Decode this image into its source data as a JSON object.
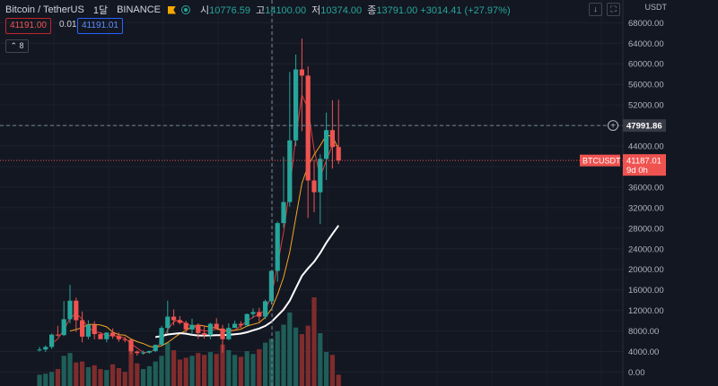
{
  "header": {
    "symbol": "Bitcoin / TetherUS",
    "interval": "1달",
    "exchange": "BINANCE",
    "ohlc": [
      {
        "key": "시",
        "value": "10776.59"
      },
      {
        "key": "고",
        "value": "14100.00"
      },
      {
        "key": "저",
        "value": "10374.00"
      },
      {
        "key": "종",
        "value": "13791.00"
      }
    ],
    "change": "+3014.41 (+27.97%)"
  },
  "trade": {
    "sell": "41191.00",
    "spread": "0.01",
    "buy": "41191.01"
  },
  "indicators_count": "8",
  "axis_unit": [
    "USDT"
  ],
  "price_labels": {
    "crosshair": "47991.86",
    "symbol_tag": "BTCUSDT",
    "last_price": "41187.01",
    "countdown": "9d 0h"
  },
  "colors": {
    "background": "#131722",
    "up": "#26a69a",
    "down": "#ef5350",
    "vol_up": "#1f5e58",
    "vol_down": "#7f2c2c",
    "ma_red": "#e03b3b",
    "ma_orange": "#f5a623",
    "ma_white": "#ffffff"
  },
  "icons": [
    "flag-icon",
    "status-dot-icon",
    "chevron-icon",
    "arrow-down-icon",
    "maximize-icon",
    "plus-circle-icon"
  ],
  "chart_data": {
    "type": "candlestick",
    "ylim": [
      0,
      68000
    ],
    "y_ticks": [
      0,
      4000,
      8000,
      12000,
      16000,
      20000,
      24000,
      28000,
      32000,
      36000,
      40000,
      44000,
      48000,
      52000,
      56000,
      60000,
      64000,
      68000
    ],
    "y_tick_labels": [
      "0.00",
      "4000.00",
      "8000.00",
      "12000.00",
      "16000.00",
      "20000.00",
      "24000.00",
      "28000.00",
      "32000.00",
      "36000.00",
      "40000.00",
      "44000.00",
      "48000.00",
      "52000.00",
      "56000.00",
      "60000.00",
      "64000.00",
      "68000.00"
    ],
    "ohlc": [
      [
        4300,
        4900,
        4000,
        4400
      ],
      [
        4400,
        5200,
        3900,
        4900
      ],
      [
        4900,
        7500,
        4500,
        7300
      ],
      [
        7300,
        9000,
        6900,
        7200
      ],
      [
        7200,
        13800,
        7000,
        10300
      ],
      [
        10300,
        17000,
        9500,
        13900
      ],
      [
        13900,
        14500,
        7800,
        10100
      ],
      [
        10100,
        11800,
        5800,
        6900
      ],
      [
        6900,
        10100,
        6400,
        9200
      ],
      [
        9200,
        9900,
        6400,
        7400
      ],
      [
        7400,
        7700,
        6500,
        6400
      ],
      [
        6400,
        7700,
        5800,
        7700
      ],
      [
        7700,
        8500,
        6500,
        7000
      ],
      [
        7000,
        7700,
        5900,
        6400
      ],
      [
        6400,
        6900,
        5800,
        6300
      ],
      [
        6300,
        6400,
        3500,
        4000
      ],
      [
        4000,
        4200,
        3200,
        3700
      ],
      [
        3700,
        4200,
        3400,
        3800
      ],
      [
        3800,
        4200,
        3600,
        4100
      ],
      [
        4100,
        5400,
        3900,
        5300
      ],
      [
        5300,
        9000,
        5200,
        8600
      ],
      [
        8600,
        13900,
        7500,
        10800
      ],
      [
        10800,
        12200,
        9100,
        10100
      ],
      [
        10100,
        10900,
        9300,
        9600
      ],
      [
        9600,
        10000,
        7700,
        8300
      ],
      [
        8300,
        10400,
        7300,
        9200
      ],
      [
        9200,
        9500,
        6500,
        7600
      ],
      [
        7600,
        9100,
        6500,
        7200
      ],
      [
        7200,
        9600,
        6400,
        9400
      ],
      [
        9400,
        10500,
        8400,
        8500
      ],
      [
        8500,
        9200,
        3800,
        6400
      ],
      [
        6400,
        9500,
        6200,
        8600
      ],
      [
        8600,
        10000,
        8600,
        9400
      ],
      [
        9400,
        9900,
        8600,
        9100
      ],
      [
        9100,
        11400,
        8800,
        11300
      ],
      [
        11300,
        12400,
        10500,
        11700
      ],
      [
        11700,
        12500,
        9800,
        10800
      ],
      [
        10800,
        14100,
        10300,
        13800
      ],
      [
        13800,
        19800,
        13200,
        19700
      ],
      [
        19700,
        29300,
        17600,
        29000
      ],
      [
        29000,
        41900,
        28100,
        33100
      ],
      [
        33100,
        58400,
        32200,
        45100
      ],
      [
        45100,
        61800,
        44000,
        58900
      ],
      [
        58900,
        64900,
        46900,
        57700
      ],
      [
        57700,
        59500,
        30000,
        37300
      ],
      [
        37300,
        41300,
        31100,
        35000
      ],
      [
        35000,
        42400,
        28800,
        41500
      ],
      [
        41500,
        50500,
        37400,
        47100
      ],
      [
        47100,
        52900,
        39600,
        43800
      ],
      [
        43800,
        53000,
        40500,
        41187
      ]
    ],
    "volume": [
      1200,
      1300,
      1500,
      1800,
      3200,
      3500,
      2500,
      2600,
      2000,
      2200,
      1800,
      1700,
      2300,
      1900,
      1500,
      3600,
      2400,
      1800,
      2100,
      2600,
      3200,
      4600,
      3800,
      2800,
      3000,
      3200,
      3500,
      3300,
      3600,
      3400,
      4400,
      3800,
      3300,
      3100,
      3700,
      3400,
      3900,
      4600,
      5000,
      5800,
      6500,
      7800,
      6200,
      5500,
      6400,
      9400,
      5600,
      3600,
      3300,
      1200
    ]
  }
}
